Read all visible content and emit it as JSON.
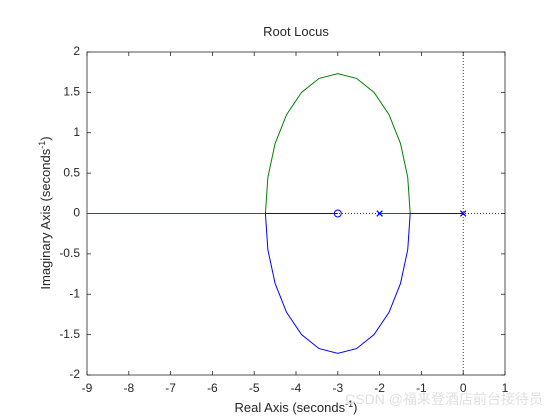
{
  "chart_data": {
    "type": "rootlocus",
    "title": "Root Locus",
    "xlabel": "Real Axis (seconds",
    "xlabel_sup": "-1",
    "xlabel_end": ")",
    "ylabel": "Imaginary Axis (seconds",
    "ylabel_sup": "-1",
    "ylabel_end": ")",
    "xlim": [
      -9,
      1
    ],
    "xticks": [
      -9,
      -8,
      -7,
      -6,
      -5,
      -4,
      -3,
      -2,
      -1,
      0,
      1
    ],
    "ylim": [
      -2,
      2
    ],
    "yticks": [
      -2,
      -1.5,
      -1,
      -0.5,
      0,
      0.5,
      1,
      1.5,
      2
    ],
    "series": [
      {
        "color": "#008000",
        "x": [
          -2,
          -1.268,
          -1.327,
          -1.5,
          -1.775,
          -2.134,
          -2.552,
          -3,
          -3.448,
          -3.866,
          -4.225,
          -4.5,
          -4.673,
          -4.732,
          -9
        ],
        "values": [
          0,
          0,
          0.448,
          0.866,
          1.225,
          1.5,
          1.673,
          1.732,
          1.673,
          1.5,
          1.225,
          0.866,
          0.448,
          0,
          0
        ]
      },
      {
        "color": "#0000ff",
        "x": [
          0,
          -1.268,
          -1.327,
          -1.5,
          -1.775,
          -2.134,
          -2.552,
          -3,
          -3.448,
          -3.866,
          -4.225,
          -4.5,
          -4.673,
          -4.732,
          -3
        ],
        "values": [
          0,
          0,
          -0.448,
          -0.866,
          -1.225,
          -1.5,
          -1.673,
          -1.732,
          -1.673,
          -1.5,
          -1.225,
          -0.866,
          -0.448,
          0,
          0
        ]
      }
    ],
    "poles": {
      "color": "#0000ff",
      "x": [
        0,
        -2
      ],
      "values": [
        0,
        0
      ]
    },
    "zeros": {
      "color": "#0000ff",
      "x": [
        -3
      ],
      "values": [
        0
      ]
    },
    "watermark": "CSDN @福来登酒店前台接待员"
  }
}
